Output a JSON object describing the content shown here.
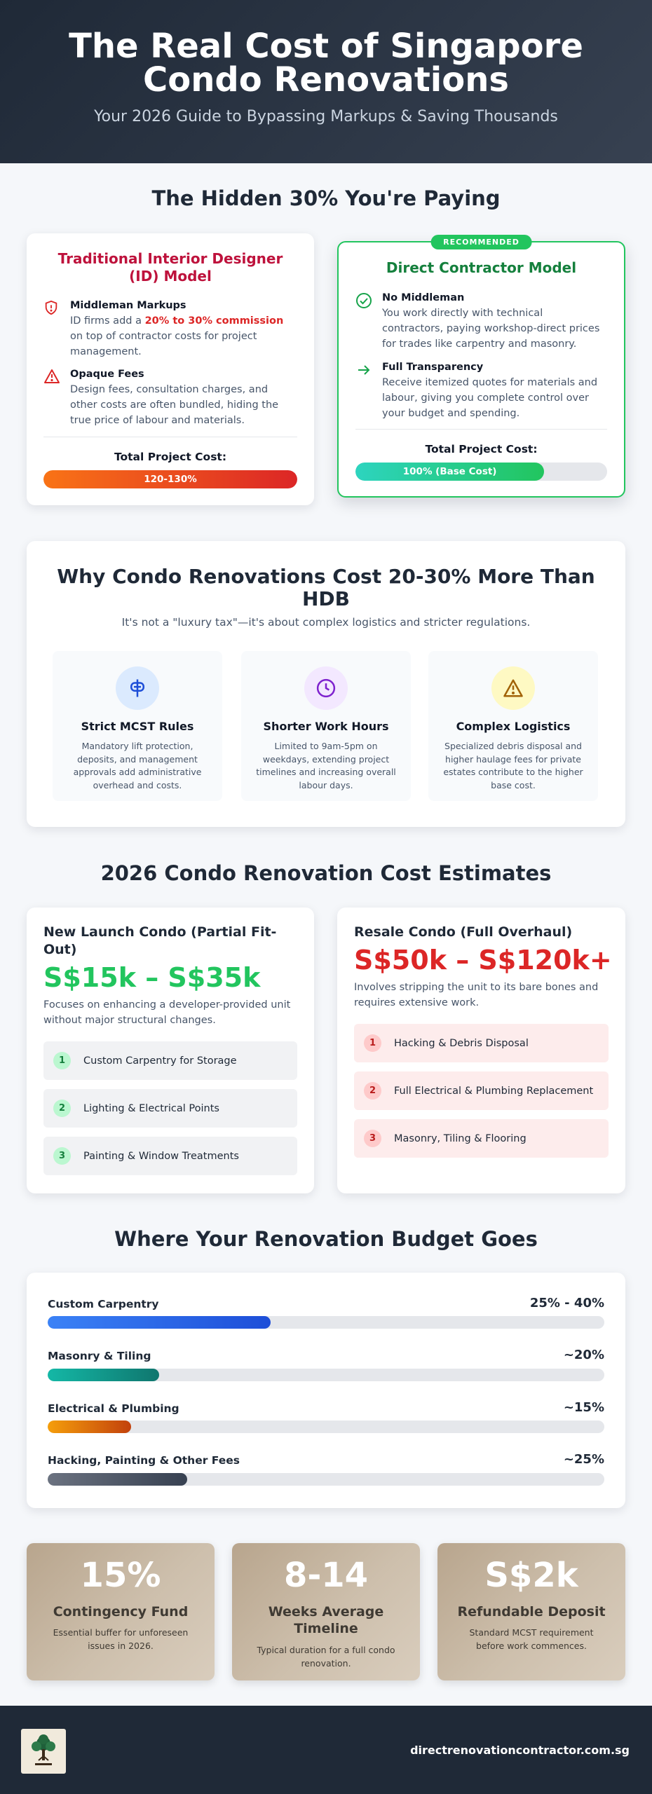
{
  "header": {
    "title": "The Real Cost of Singapore Condo Renovations",
    "subtitle": "Your 2026 Guide to Bypassing Markups & Saving Thousands"
  },
  "hidden": {
    "title": "The Hidden 30% You're Paying",
    "traditional": {
      "title": "Traditional Interior Designer (ID) Model",
      "items": [
        {
          "icon": "shield-alert-icon",
          "heading": "Middleman Markups",
          "text_before": "ID firms add a ",
          "highlight": "20% to 30% commission",
          "text_after": " on top of contractor costs for project management."
        },
        {
          "icon": "warning-triangle-icon",
          "heading": "Opaque Fees",
          "text": "Design fees, consultation charges, and other costs are often bundled, hiding the true price of labour and materials."
        }
      ],
      "total_label": "Total Project Cost:",
      "bar_label": "120-130%",
      "bar_fill": 1.0,
      "bar_color_start": "#f97316",
      "bar_color_end": "#dc2626"
    },
    "direct": {
      "badge": "RECOMMENDED",
      "title": "Direct Contractor Model",
      "items": [
        {
          "icon": "check-circle-icon",
          "heading": "No Middleman",
          "text": "You work directly with technical contractors, paying workshop-direct prices for trades like carpentry and masonry."
        },
        {
          "icon": "arrow-right-icon",
          "heading": "Full Transparency",
          "text": "Receive itemized quotes for materials and labour, giving you complete control over your budget and spending."
        }
      ],
      "total_label": "Total Project Cost:",
      "bar_label": "100% (Base Cost)",
      "bar_fill": 0.75,
      "bar_color_start": "#2dd4bf",
      "bar_color_end": "#22c55e"
    }
  },
  "why": {
    "title": "Why Condo Renovations Cost 20-30% More Than HDB",
    "subtitle": "It's not a \"luxury tax\"—it's about complex logistics and stricter regulations.",
    "boxes": [
      {
        "icon": "lift-icon",
        "title": "Strict MCST Rules",
        "text": "Mandatory lift protection, deposits, and management approvals add administrative overhead and costs.",
        "circle_color": "#dbeafe",
        "icon_color": "#1d4ed8"
      },
      {
        "icon": "clock-icon",
        "title": "Shorter Work Hours",
        "text": "Limited to 9am-5pm on weekdays, extending project timelines and increasing overall labour days.",
        "circle_color": "#f3e8ff",
        "icon_color": "#7e22ce"
      },
      {
        "icon": "warning-icon",
        "title": "Complex Logistics",
        "text": "Specialized debris disposal and higher haulage fees for private estates contribute to the higher base cost.",
        "circle_color": "#fef9c3",
        "icon_color": "#a16207"
      }
    ]
  },
  "estimates": {
    "title": "2026 Condo Renovation Cost Estimates",
    "new_launch": {
      "title": "New Launch Condo (Partial Fit-Out)",
      "price": "S$15k – S$35k",
      "price_color": "#22c55e",
      "desc": "Focuses on enhancing a developer-provided unit without major structural changes.",
      "items": [
        {
          "num": "1",
          "label": "Custom Carpentry for Storage"
        },
        {
          "num": "2",
          "label": "Lighting & Electrical Points"
        },
        {
          "num": "3",
          "label": "Painting & Window Treatments"
        }
      ]
    },
    "resale": {
      "title": "Resale Condo (Full Overhaul)",
      "price": "S$50k – S$120k+",
      "price_color": "#dc2626",
      "desc": "Involves stripping the unit to its bare bones and requires extensive work.",
      "items": [
        {
          "num": "1",
          "label": "Hacking & Debris Disposal"
        },
        {
          "num": "2",
          "label": "Full Electrical & Plumbing Replacement"
        },
        {
          "num": "3",
          "label": "Masonry, Tiling & Flooring"
        }
      ]
    }
  },
  "budget": {
    "title": "Where Your Renovation Budget Goes",
    "rows": [
      {
        "label": "Custom Carpentry",
        "value": "25% - 40%",
        "fill": 0.4,
        "c1": "#3b82f6",
        "c2": "#1d4ed8"
      },
      {
        "label": "Masonry & Tiling",
        "value": "~20%",
        "fill": 0.2,
        "c1": "#14b8a6",
        "c2": "#0f766e"
      },
      {
        "label": "Electrical & Plumbing",
        "value": "~15%",
        "fill": 0.15,
        "c1": "#f59e0b",
        "c2": "#c2410c"
      },
      {
        "label": "Hacking, Painting & Other Fees",
        "value": "~25%",
        "fill": 0.25,
        "c1": "#6b7280",
        "c2": "#374151"
      }
    ]
  },
  "stats": [
    {
      "big": "15%",
      "label": "Contingency Fund",
      "text": "Essential buffer for unforeseen issues in 2026."
    },
    {
      "big": "8-14",
      "label": "Weeks Average Timeline",
      "text": "Typical duration for a full condo renovation."
    },
    {
      "big": "S$2k",
      "label": "Refundable Deposit",
      "text": "Standard MCST requirement before work commences."
    }
  ],
  "footer": {
    "logo": "tree-logo",
    "url": "directrenovationcontractor.com.sg"
  }
}
